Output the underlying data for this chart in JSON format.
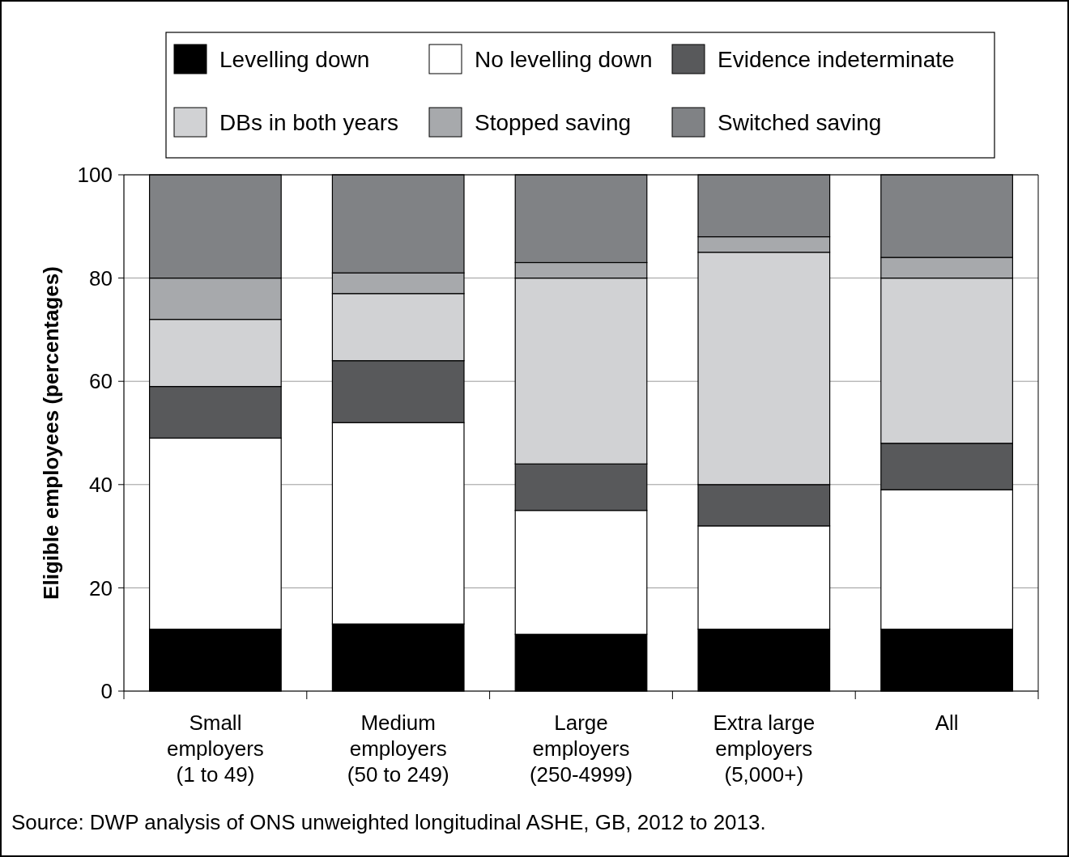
{
  "chart_data": {
    "type": "bar",
    "stacked": true,
    "ylabel": "Eligible employees (percentages)",
    "categories": [
      "Small\nemployers\n(1 to 49)",
      "Medium\nemployers\n(50 to 249)",
      "Large\nemployers\n(250-4999)",
      "Extra large\nemployers\n(5,000+)",
      "All"
    ],
    "series": [
      {
        "name": "Levelling down",
        "color": "#000000",
        "values": [
          12,
          13,
          11,
          12,
          12
        ]
      },
      {
        "name": "No levelling down",
        "color": "#ffffff",
        "values": [
          37,
          39,
          24,
          20,
          27
        ]
      },
      {
        "name": "Evidence indeterminate",
        "color": "#58595b",
        "values": [
          10,
          12,
          9,
          8,
          9
        ]
      },
      {
        "name": "DBs in both years",
        "color": "#d1d2d4",
        "values": [
          13,
          13,
          36,
          45,
          32
        ]
      },
      {
        "name": "Stopped saving",
        "color": "#a7a9ac",
        "values": [
          8,
          4,
          3,
          3,
          4
        ]
      },
      {
        "name": "Switched saving",
        "color": "#808285",
        "values": [
          20,
          19,
          17,
          12,
          16
        ]
      }
    ],
    "ylim": [
      0,
      100
    ],
    "yticks": [
      0,
      20,
      40,
      60,
      80,
      100
    ],
    "grid": "y",
    "legend": "top",
    "annotations": [
      "Source: DWP analysis of ONS unweighted longitudinal ASHE, GB, 2012 to 2013."
    ]
  }
}
